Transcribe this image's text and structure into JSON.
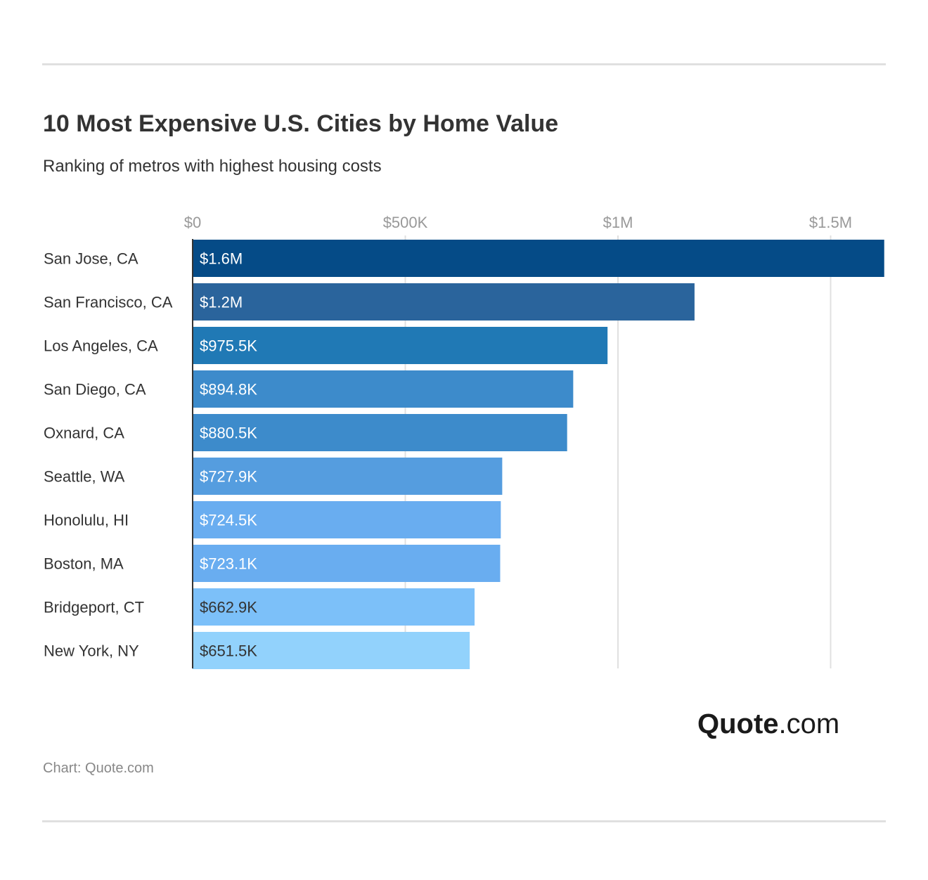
{
  "chart_data": {
    "type": "bar",
    "orientation": "horizontal",
    "title": "10 Most Expensive U.S. Cities by Home Value",
    "subtitle": "Ranking of metros with highest housing costs",
    "categories": [
      "San Jose, CA",
      "San Francisco, CA",
      "Los Angeles, CA",
      "San Diego, CA",
      "Oxnard, CA",
      "Seattle, WA",
      "Honolulu, HI",
      "Boston, MA",
      "Bridgeport, CT",
      "New York, NY"
    ],
    "values": [
      1626000,
      1180000,
      975500,
      894800,
      880500,
      727900,
      724500,
      723100,
      662900,
      651500
    ],
    "data_labels": [
      "$1.6M",
      "$1.2M",
      "$975.5K",
      "$894.8K",
      "$880.5K",
      "$727.9K",
      "$724.5K",
      "$723.1K",
      "$662.9K",
      "$651.5K"
    ],
    "colors": [
      "#054b87",
      "#2a649c",
      "#2079b5",
      "#3d8bcb",
      "#3d8bcb",
      "#559ddf",
      "#69adf0",
      "#69adf0",
      "#7cc0f9",
      "#92d2fc"
    ],
    "label_colors": [
      "#ffffff",
      "#ffffff",
      "#ffffff",
      "#ffffff",
      "#ffffff",
      "#ffffff",
      "#ffffff",
      "#ffffff",
      "#333333",
      "#333333"
    ],
    "x_ticks": [
      0,
      500000,
      1000000,
      1500000
    ],
    "x_tick_labels": [
      "$0",
      "$500K",
      "$1M",
      "$1.5M"
    ],
    "xlim": [
      0,
      1626000
    ],
    "xaxis_position": "top",
    "grid": true,
    "xlabel": "",
    "ylabel": ""
  },
  "source": "Chart: Quote.com",
  "logo": {
    "bold": "Quote",
    "rest": ".com"
  }
}
